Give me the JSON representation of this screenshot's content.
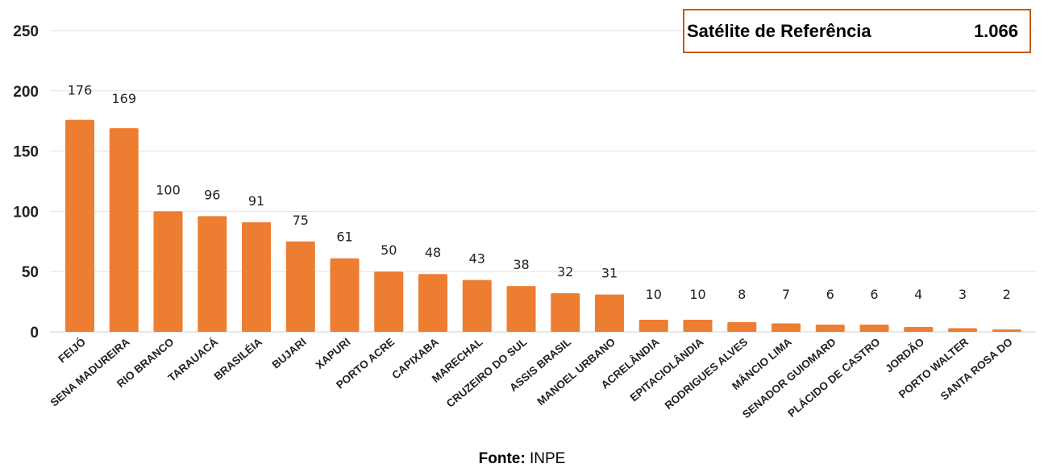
{
  "chart_data": {
    "type": "bar",
    "categories": [
      "FEIJÓ",
      "SENA MADUREIRA",
      "RIO BRANCO",
      "TARAUACÁ",
      "BRASILÉIA",
      "BUJARI",
      "XAPURI",
      "PORTO ACRE",
      "CAPIXABA",
      "MARECHAL",
      "CRUZEIRO DO SUL",
      "ASSIS BRASIL",
      "MANOEL URBANO",
      "ACRELÂNDIA",
      "EPITACIOLÂNDIA",
      "RODRIGUES ALVES",
      "MÂNCIO LIMA",
      "SENADOR GUIOMARD",
      "PLÁCIDO DE CASTRO",
      "JORDÃO",
      "PORTO WALTER",
      "SANTA ROSA DO"
    ],
    "values": [
      176,
      169,
      100,
      96,
      91,
      75,
      61,
      50,
      48,
      43,
      38,
      32,
      31,
      10,
      10,
      8,
      7,
      6,
      6,
      4,
      3,
      2
    ],
    "yticks": [
      0,
      50,
      100,
      150,
      200,
      250
    ],
    "ylim": [
      0,
      250
    ],
    "grid": true,
    "bar_color": "#ed7d31",
    "title": "",
    "xlabel": "",
    "ylabel": ""
  },
  "reference": {
    "label": "Satélite de Referência",
    "value": "1.066",
    "border_color": "#c55a11"
  },
  "source": {
    "label": "Fonte:",
    "value": "INPE"
  }
}
